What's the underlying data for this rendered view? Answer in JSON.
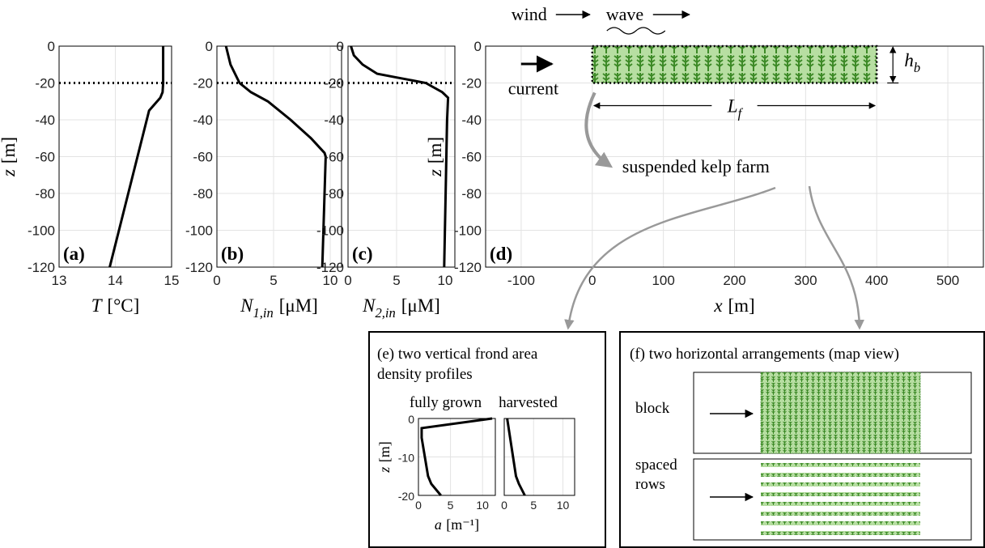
{
  "chart_data": [
    {
      "type": "line",
      "panel": "(a)",
      "xlabel": {
        "text": "T",
        "unit": "[°C]"
      },
      "ylabel": {
        "text": "z",
        "unit": "[m]"
      },
      "xlim": [
        13,
        15
      ],
      "ylim": [
        -120,
        0
      ],
      "xticks": [
        13,
        14,
        15
      ],
      "yticks": [
        0,
        -20,
        -40,
        -60,
        -80,
        -100,
        -120
      ],
      "grid": true,
      "color": "#000000",
      "x": [
        14.85,
        14.85,
        14.84,
        14.8,
        14.6,
        13.9
      ],
      "values": [
        0,
        -20,
        -25,
        -28,
        -35,
        -120
      ],
      "hline": -20
    },
    {
      "type": "line",
      "panel": "(b)",
      "xlabel": {
        "text": "N",
        "sub": "1,in",
        "unit": "[μM]"
      },
      "xlim": [
        0,
        11
      ],
      "ylim": [
        -120,
        0
      ],
      "xticks": [
        0,
        5,
        10
      ],
      "yticks": [
        0,
        -20,
        -40,
        -60,
        -80,
        -100,
        -120
      ],
      "grid": true,
      "color": "#000000",
      "x": [
        0.8,
        1.2,
        2,
        3,
        4.5,
        6.5,
        8.3,
        9.5,
        9.6,
        9.3
      ],
      "values": [
        0,
        -10,
        -20,
        -25,
        -30,
        -40,
        -50,
        -58,
        -60,
        -120
      ],
      "hline": -20
    },
    {
      "type": "line",
      "panel": "(c)",
      "xlabel": {
        "text": "N",
        "sub": "2,in",
        "unit": "[μM]"
      },
      "xlim": [
        0,
        11
      ],
      "ylim": [
        -120,
        0
      ],
      "xticks": [
        0,
        5,
        10
      ],
      "yticks": [
        0,
        -20,
        -40,
        -60,
        -80,
        -100,
        -120
      ],
      "grid": true,
      "color": "#000000",
      "x": [
        0.3,
        0.6,
        1.5,
        3,
        5,
        8,
        9.7,
        10.3,
        10.2,
        9.9
      ],
      "values": [
        0,
        -5,
        -10,
        -15,
        -17,
        -20,
        -25,
        -28,
        -40,
        -120
      ],
      "hline": -20
    },
    {
      "type": "schematic",
      "panel": "(d)",
      "xlabel": {
        "text": "x",
        "unit": "[m]"
      },
      "ylabel": {
        "text": "z",
        "unit": "[m]"
      },
      "xlim": [
        -150,
        550
      ],
      "ylim": [
        -120,
        0
      ],
      "xticks": [
        -100,
        0,
        100,
        200,
        300,
        400,
        500
      ],
      "yticks": [
        0,
        -20,
        -40,
        -60,
        -80,
        -100,
        -120
      ],
      "grid": true,
      "farm": {
        "x": [
          0,
          400
        ],
        "z": [
          0,
          -20
        ]
      },
      "annotations": {
        "wind": "wind",
        "wave": "wave",
        "current": "current",
        "farm": "suspended kelp farm",
        "length": {
          "text": "L",
          "sub": "f"
        },
        "height": {
          "text": "h",
          "sub": "b"
        }
      }
    },
    {
      "type": "line",
      "title": "fully grown",
      "xlabel": {
        "text": "a",
        "unit": "[m⁻¹]"
      },
      "ylabel": {
        "text": "z",
        "unit": "[m]"
      },
      "xlim": [
        0,
        12
      ],
      "ylim": [
        -20,
        0
      ],
      "xticks": [
        0,
        5,
        10
      ],
      "yticks": [
        0,
        -10,
        -20
      ],
      "grid": true,
      "color": "#000000",
      "x": [
        11.5,
        0.5,
        0.5,
        1,
        1.5,
        2,
        3.5
      ],
      "values": [
        0,
        -2.5,
        -5,
        -10,
        -15,
        -17,
        -20
      ]
    },
    {
      "type": "line",
      "title": "harvested",
      "show_ytick_labels": false,
      "xlim": [
        0,
        12
      ],
      "ylim": [
        -20,
        0
      ],
      "xticks": [
        0,
        5,
        10
      ],
      "yticks": [
        0,
        -10,
        -20
      ],
      "grid": true,
      "color": "#000000",
      "x": [
        0.5,
        1,
        1.5,
        2,
        2.5,
        3.5
      ],
      "values": [
        0,
        -5,
        -10,
        -15,
        -17,
        -20
      ]
    }
  ],
  "panel_e": {
    "title": [
      "(e) two vertical frond area",
      "density profiles"
    ]
  },
  "panel_f": {
    "title": "(f) two horizontal arrangements (map view)",
    "arrangements": [
      [
        "block"
      ],
      [
        "spaced",
        "rows"
      ]
    ]
  }
}
